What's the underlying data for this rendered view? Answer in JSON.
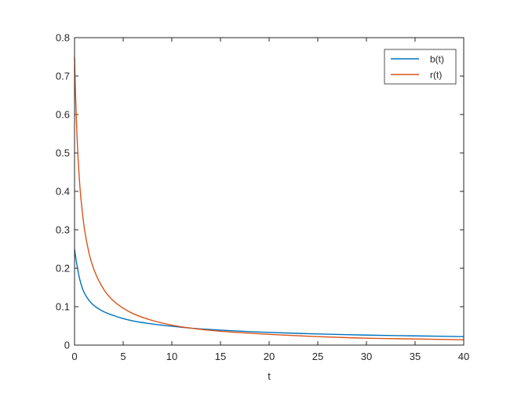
{
  "chart_data": {
    "type": "line",
    "title": "",
    "xlabel": "t",
    "ylabel": "",
    "xlim": [
      0,
      40
    ],
    "ylim": [
      0,
      0.8
    ],
    "xticks": [
      0,
      5,
      10,
      15,
      20,
      25,
      30,
      35,
      40
    ],
    "yticks": [
      0,
      0.1,
      0.2,
      0.3,
      0.4,
      0.5,
      0.6,
      0.7,
      0.8
    ],
    "xtick_labels": [
      "0",
      "5",
      "10",
      "15",
      "20",
      "25",
      "30",
      "35",
      "40"
    ],
    "ytick_labels": [
      "0",
      "0.1",
      "0.2",
      "0.3",
      "0.4",
      "0.5",
      "0.6",
      "0.7",
      "0.8"
    ],
    "grid": false,
    "legend_position": "top-right",
    "series": [
      {
        "name": "b(t)",
        "color": "#0072BD",
        "x": [
          0,
          0.1,
          0.25,
          0.5,
          0.75,
          1,
          1.5,
          2,
          3,
          4,
          5,
          6,
          8,
          10,
          12,
          15,
          18,
          20,
          25,
          30,
          35,
          40
        ],
        "y": [
          0.25,
          0.232,
          0.208,
          0.175,
          0.152,
          0.136,
          0.116,
          0.103,
          0.087,
          0.077,
          0.069,
          0.063,
          0.055,
          0.049,
          0.044,
          0.039,
          0.035,
          0.033,
          0.029,
          0.026,
          0.024,
          0.022
        ]
      },
      {
        "name": "r(t)",
        "color": "#D95319",
        "x": [
          0,
          0.1,
          0.25,
          0.5,
          0.75,
          1,
          1.5,
          2,
          3,
          4,
          5,
          6,
          8,
          10,
          12,
          15,
          18,
          20,
          25,
          30,
          35,
          40
        ],
        "y": [
          0.75,
          0.652,
          0.545,
          0.43,
          0.358,
          0.305,
          0.238,
          0.196,
          0.145,
          0.115,
          0.096,
          0.082,
          0.064,
          0.052,
          0.044,
          0.036,
          0.031,
          0.028,
          0.022,
          0.018,
          0.016,
          0.014
        ]
      }
    ]
  }
}
